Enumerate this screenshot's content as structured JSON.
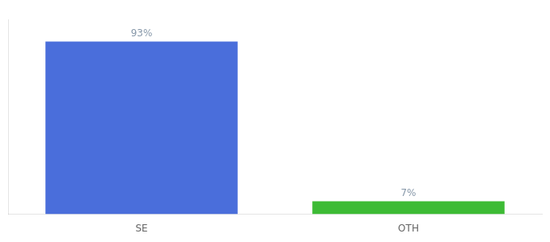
{
  "chart_data": {
    "type": "bar",
    "categories": [
      "SE",
      "OTH"
    ],
    "values": [
      93,
      7
    ],
    "value_labels": [
      "93%",
      "7%"
    ],
    "colors": [
      "#4a6edb",
      "#3dbb35"
    ],
    "ylim": [
      0,
      105
    ],
    "grid": false,
    "data_labels": true,
    "tick_labels": "x"
  }
}
